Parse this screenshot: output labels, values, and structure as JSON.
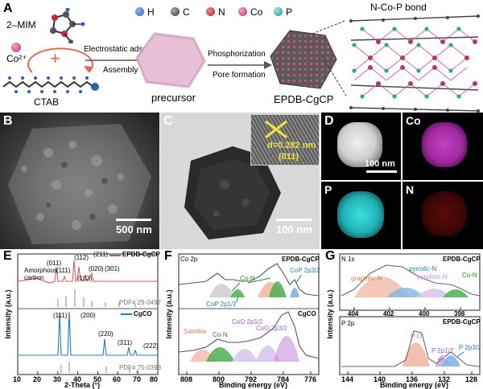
{
  "panel_a": {
    "letter": "A",
    "legend": [
      {
        "label": "H",
        "color": "#2e5fb8"
      },
      {
        "label": "C",
        "color": "#4a4a4a"
      },
      {
        "label": "N",
        "color": "#c8283c"
      },
      {
        "label": "Co",
        "color": "#d04a8a"
      },
      {
        "label": "P",
        "color": "#2aa7a7"
      }
    ],
    "mim_label": "2–MIM",
    "co_label": "Co²⁺",
    "ctab_label": "CTAB",
    "plus": "+",
    "step1_top": "Electrostatic adsorption",
    "step1_bottom": "Assembly",
    "precursor_label": "precursor",
    "step2_top": "Phosphorization",
    "step2_bottom": "Pore formation",
    "product_label": "EPDB-CgCP",
    "bond_label": "N-Co-P bond"
  },
  "panel_b": {
    "letter": "B",
    "scale": "500 nm"
  },
  "panel_c": {
    "letter": "C",
    "scale": "100 nm",
    "d_spacing": "d=0.282 nm",
    "plane": "(011)"
  },
  "panel_d": {
    "letter": "D",
    "scale": "100 nm",
    "maps": [
      "Co",
      "P",
      "N"
    ]
  },
  "panel_e": {
    "letter": "E",
    "top_legend": "EPDB-CgCP",
    "bottom_legend": "CgCO",
    "amorphous": "Amorphous\ncarbon",
    "pdf_top": "PDF# 29-0497",
    "pdf_bottom": "PDF# 75-0393",
    "top_peaks": [
      "(011)",
      "(111)",
      "(112)",
      "(211)",
      "(103)",
      "(020)",
      "(301)"
    ],
    "bottom_peaks": [
      "(111)",
      "(200)",
      "(220)",
      "(311)",
      "(222)"
    ],
    "ylabel": "Intensity (a.u.)",
    "xlabel": "2-Theta (°)",
    "xticks": [
      "10",
      "20",
      "30",
      "40",
      "50",
      "60",
      "70",
      "80"
    ]
  },
  "panel_f": {
    "letter": "F",
    "corner": "Co 2p",
    "top_legend": "EPDB-CgCP",
    "bottom_legend": "CgCO",
    "top_labels": [
      "Co-N",
      "CoP 2p3/2",
      "CoP 2p1/2"
    ],
    "bottom_labels": [
      "Satellite",
      "Co-N",
      "CoO 2p1/2",
      "CoO 2p3/2"
    ],
    "ylabel": "Intensity (a.u.)",
    "xlabel": "Binding energy (eV)",
    "xticks": [
      "808",
      "800",
      "792",
      "784",
      "776"
    ]
  },
  "panel_g": {
    "letter": "G",
    "top_corner": "N 1s",
    "top_legend": "EPDB-CgCP",
    "top_labels": [
      "graphitic-N",
      "pyrrolic-N",
      "pyridinic-N",
      "Co-N"
    ],
    "top_xticks": [
      "404",
      "402",
      "400",
      "398"
    ],
    "bottom_corner": "P 2p",
    "bottom_legend": "EPDB-CgCP",
    "bottom_labels": [
      "P-O",
      "P 2p1/2",
      "P 2p3/2"
    ],
    "bottom_xticks": [
      "144",
      "140",
      "136",
      "132",
      "128"
    ],
    "ylabel": "Intensity (a.u.)",
    "xlabel": "Binding energy (eV)"
  },
  "colors": {
    "edpb_red": "#e0505a",
    "cgco_blue": "#1f7fb3",
    "green": "#4caf50",
    "peach": "#f2b9a6",
    "blue_fill": "#7fb7e6",
    "violet": "#c38de0"
  }
}
